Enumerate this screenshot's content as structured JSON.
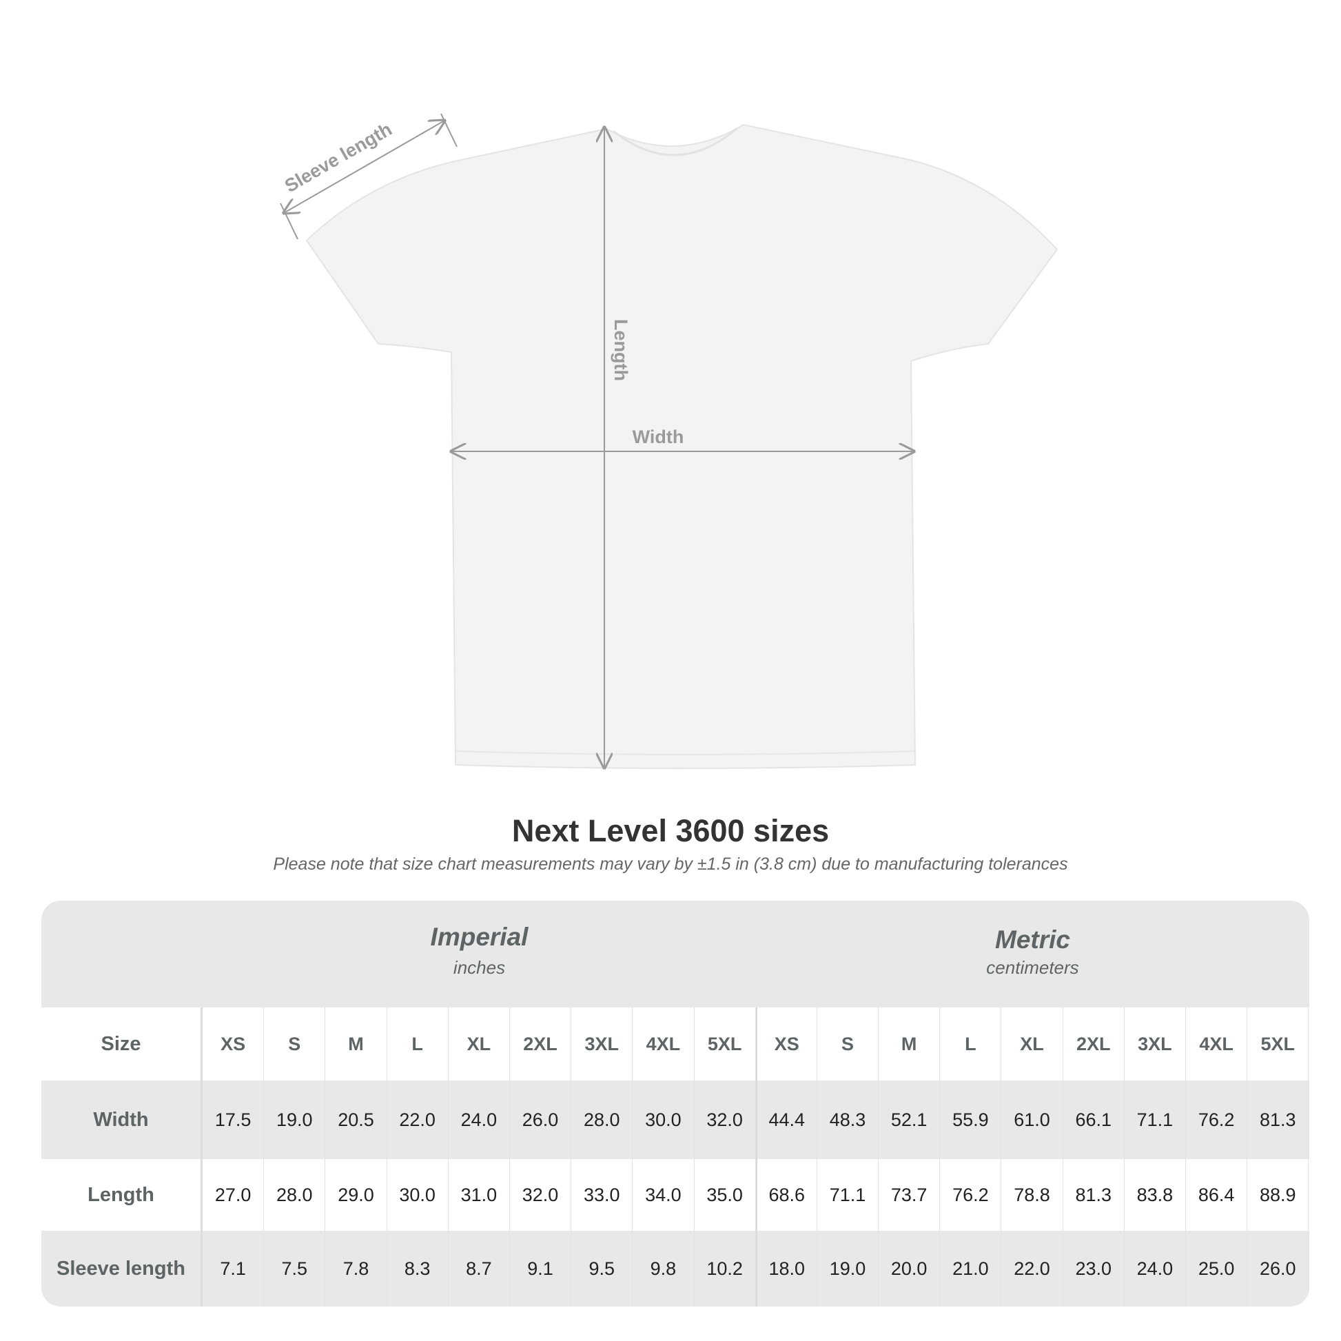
{
  "diagram": {
    "sleeve_label": "Sleeve length",
    "length_label": "Length",
    "width_label": "Width",
    "garment_color": "#f3f3f3"
  },
  "title": "Next Level 3600 sizes",
  "note": "Please note that size chart measurements may vary by ±1.5 in (3.8 cm) due to manufacturing tolerances",
  "table": {
    "imperial": {
      "title": "Imperial",
      "unit": "inches"
    },
    "metric": {
      "title": "Metric",
      "unit": "centimeters"
    },
    "size_label": "Size",
    "sizes": [
      "XS",
      "S",
      "M",
      "L",
      "XL",
      "2XL",
      "3XL",
      "4XL",
      "5XL"
    ],
    "rows": [
      {
        "label": "Width",
        "imperial": [
          "17.5",
          "19.0",
          "20.5",
          "22.0",
          "24.0",
          "26.0",
          "28.0",
          "30.0",
          "32.0"
        ],
        "metric": [
          "44.4",
          "48.3",
          "52.1",
          "55.9",
          "61.0",
          "66.1",
          "71.1",
          "76.2",
          "81.3"
        ]
      },
      {
        "label": "Length",
        "imperial": [
          "27.0",
          "28.0",
          "29.0",
          "30.0",
          "31.0",
          "32.0",
          "33.0",
          "34.0",
          "35.0"
        ],
        "metric": [
          "68.6",
          "71.1",
          "73.7",
          "76.2",
          "78.8",
          "81.3",
          "83.8",
          "86.4",
          "88.9"
        ]
      },
      {
        "label": "Sleeve length",
        "imperial": [
          "7.1",
          "7.5",
          "7.8",
          "8.3",
          "8.7",
          "9.1",
          "9.5",
          "9.8",
          "10.2"
        ],
        "metric": [
          "18.0",
          "19.0",
          "20.0",
          "21.0",
          "22.0",
          "23.0",
          "24.0",
          "25.0",
          "26.0"
        ]
      }
    ]
  }
}
